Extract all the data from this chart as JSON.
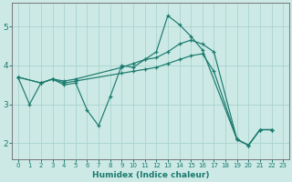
{
  "xlabel": "Humidex (Indice chaleur)",
  "background_color": "#cce9e5",
  "grid_color": "#aad4cf",
  "line_color": "#1a7a6e",
  "xlim": [
    -0.5,
    23.5
  ],
  "ylim": [
    1.6,
    5.6
  ],
  "yticks": [
    2,
    3,
    4,
    5
  ],
  "xticks": [
    0,
    1,
    2,
    3,
    4,
    5,
    6,
    7,
    8,
    9,
    10,
    11,
    12,
    13,
    14,
    15,
    16,
    17,
    18,
    19,
    20,
    21,
    22,
    23
  ],
  "series1_x": [
    0,
    1,
    2,
    3,
    4,
    5,
    6,
    7,
    8,
    9,
    10,
    11,
    12,
    13,
    14,
    15,
    16,
    19,
    20,
    21,
    22
  ],
  "series1_y": [
    3.7,
    3.0,
    3.55,
    3.65,
    3.5,
    3.55,
    2.85,
    2.45,
    3.2,
    4.0,
    3.95,
    4.15,
    4.35,
    5.28,
    5.05,
    4.75,
    4.4,
    2.1,
    1.95,
    2.35,
    2.35
  ],
  "series2_x": [
    0,
    2,
    3,
    4,
    5,
    9,
    10,
    11,
    12,
    13,
    14,
    15,
    16,
    17,
    19,
    20,
    21,
    22
  ],
  "series2_y": [
    3.7,
    3.55,
    3.65,
    3.6,
    3.65,
    3.95,
    4.05,
    4.15,
    4.2,
    4.35,
    4.55,
    4.65,
    4.55,
    4.35,
    2.1,
    1.95,
    2.35,
    2.35
  ],
  "series3_x": [
    0,
    2,
    3,
    4,
    5,
    9,
    10,
    11,
    12,
    13,
    14,
    15,
    16,
    17,
    19,
    20,
    21,
    22
  ],
  "series3_y": [
    3.7,
    3.55,
    3.65,
    3.55,
    3.6,
    3.8,
    3.85,
    3.9,
    3.95,
    4.05,
    4.15,
    4.25,
    4.3,
    3.85,
    2.1,
    1.95,
    2.35,
    2.35
  ]
}
